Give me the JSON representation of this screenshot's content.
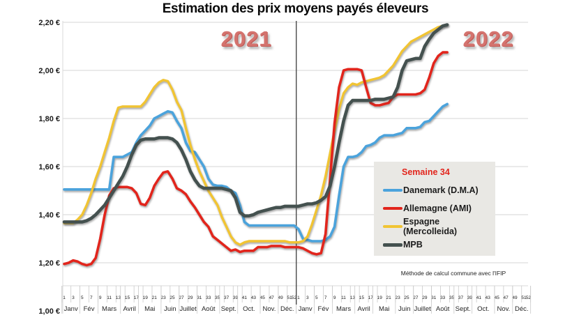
{
  "chart_data": {
    "type": "line",
    "title": "Estimation des prix moyens payés éleveurs",
    "year_labels": [
      "2021",
      "2022"
    ],
    "legend_title": "Semaine 34",
    "footnote": "Méthode de calcul commune avec l'IFIP",
    "layout": {
      "grid": "horizontal",
      "legend_position": "right-middle",
      "divider_between_years": true,
      "grid_color": "#d6d6d6",
      "divider_color": "#4a4a4a",
      "legend_bg": "#E9E8E4"
    },
    "y_axis": {
      "unit": "€",
      "min": 1.0,
      "max": 2.2,
      "step": 0.2,
      "ticks": [
        {
          "label": "2,20 €",
          "value": 2.2
        },
        {
          "label": "2,00 €",
          "value": 2.0
        },
        {
          "label": "1,80 €",
          "value": 1.8
        },
        {
          "label": "1,60 €",
          "value": 1.6
        },
        {
          "label": "1,40 €",
          "value": 1.4
        },
        {
          "label": "1,20 €",
          "value": 1.2
        },
        {
          "label": "1,00 €",
          "value": 1.0
        }
      ]
    },
    "x_axis": {
      "week_tick_labels": [
        "1",
        "3",
        "5",
        "7",
        "9",
        "11",
        "13",
        "15",
        "17",
        "19",
        "21",
        "23",
        "25",
        "27",
        "29",
        "31",
        "33",
        "35",
        "37",
        "39",
        "41",
        "43",
        "45",
        "47",
        "49",
        "51",
        "52"
      ],
      "months": [
        "Janv",
        "Fév",
        "Mars",
        "Avril",
        "Mai",
        "Juin",
        "Juillet",
        "Août",
        "Sept.",
        "Oct.",
        "Nov.",
        "Déc."
      ],
      "month_week_spans": [
        [
          1,
          4
        ],
        [
          5,
          8
        ],
        [
          9,
          13
        ],
        [
          14,
          17
        ],
        [
          18,
          22
        ],
        [
          23,
          26
        ],
        [
          27,
          30
        ],
        [
          31,
          35
        ],
        [
          36,
          39
        ],
        [
          40,
          44
        ],
        [
          45,
          48
        ],
        [
          49,
          52
        ]
      ]
    },
    "series": [
      {
        "name": "Danemark (D.M.A)",
        "color": "#4BA3DC",
        "line_width": 3.6,
        "values_2021": [
          1.505,
          1.505,
          1.505,
          1.505,
          1.505,
          1.505,
          1.505,
          1.505,
          1.505,
          1.505,
          1.505,
          1.64,
          1.64,
          1.64,
          1.65,
          1.66,
          1.7,
          1.73,
          1.75,
          1.77,
          1.8,
          1.81,
          1.82,
          1.83,
          1.825,
          1.79,
          1.76,
          1.7,
          1.665,
          1.66,
          1.63,
          1.6,
          1.55,
          1.525,
          1.52,
          1.52,
          1.515,
          1.5,
          1.49,
          1.44,
          1.37,
          1.355,
          1.355,
          1.355,
          1.355,
          1.355,
          1.355,
          1.355,
          1.355,
          1.355,
          1.355,
          1.355
        ],
        "values_2022": [
          1.34,
          1.3,
          1.295,
          1.29,
          1.29,
          1.29,
          1.295,
          1.31,
          1.35,
          1.48,
          1.6,
          1.64,
          1.64,
          1.645,
          1.66,
          1.685,
          1.69,
          1.7,
          1.72,
          1.73,
          1.73,
          1.73,
          1.735,
          1.74,
          1.76,
          1.76,
          1.76,
          1.765,
          1.785,
          1.79,
          1.81,
          1.83,
          1.85,
          1.86
        ]
      },
      {
        "name": "Allemagne (AMI)",
        "color": "#E2251C",
        "line_width": 3.6,
        "values_2021": [
          1.195,
          1.2,
          1.21,
          1.205,
          1.195,
          1.19,
          1.195,
          1.22,
          1.3,
          1.4,
          1.48,
          1.51,
          1.515,
          1.515,
          1.515,
          1.51,
          1.49,
          1.445,
          1.44,
          1.47,
          1.52,
          1.55,
          1.575,
          1.58,
          1.55,
          1.51,
          1.5,
          1.485,
          1.455,
          1.43,
          1.4,
          1.37,
          1.35,
          1.31,
          1.295,
          1.28,
          1.265,
          1.25,
          1.255,
          1.245,
          1.25,
          1.25,
          1.25,
          1.265,
          1.265,
          1.265,
          1.27,
          1.27,
          1.27,
          1.265,
          1.265,
          1.265
        ],
        "values_2022": [
          1.265,
          1.26,
          1.25,
          1.24,
          1.235,
          1.24,
          1.32,
          1.55,
          1.78,
          1.93,
          2.0,
          2.005,
          2.005,
          2.005,
          2.0,
          1.93,
          1.865,
          1.855,
          1.855,
          1.86,
          1.865,
          1.89,
          1.9,
          1.9,
          1.9,
          1.9,
          1.9,
          1.905,
          1.92,
          1.97,
          2.03,
          2.06,
          2.075,
          2.075
        ]
      },
      {
        "name": "Espagne (Mercolleida)",
        "color": "#F1C433",
        "line_width": 3.4,
        "values_2021": [
          1.365,
          1.365,
          1.365,
          1.38,
          1.4,
          1.44,
          1.49,
          1.55,
          1.6,
          1.66,
          1.72,
          1.79,
          1.845,
          1.85,
          1.85,
          1.85,
          1.85,
          1.85,
          1.87,
          1.9,
          1.93,
          1.95,
          1.96,
          1.955,
          1.92,
          1.87,
          1.835,
          1.76,
          1.69,
          1.63,
          1.58,
          1.54,
          1.5,
          1.47,
          1.44,
          1.39,
          1.35,
          1.31,
          1.285,
          1.275,
          1.285,
          1.29,
          1.29,
          1.29,
          1.29,
          1.29,
          1.29,
          1.29,
          1.29,
          1.29,
          1.285,
          1.285
        ],
        "values_2022": [
          1.285,
          1.29,
          1.31,
          1.36,
          1.42,
          1.48,
          1.56,
          1.655,
          1.75,
          1.84,
          1.905,
          1.93,
          1.945,
          1.94,
          1.95,
          1.955,
          1.96,
          1.965,
          1.97,
          1.98,
          2.0,
          2.02,
          2.05,
          2.08,
          2.1,
          2.12,
          2.13,
          2.14,
          2.15,
          2.16,
          2.17,
          2.18,
          2.185,
          2.19
        ]
      },
      {
        "name": "MPB",
        "color": "#44514F",
        "line_width": 4.6,
        "values_2021": [
          1.37,
          1.37,
          1.37,
          1.37,
          1.37,
          1.375,
          1.385,
          1.4,
          1.42,
          1.44,
          1.47,
          1.5,
          1.53,
          1.56,
          1.6,
          1.65,
          1.69,
          1.71,
          1.715,
          1.715,
          1.715,
          1.72,
          1.72,
          1.72,
          1.715,
          1.7,
          1.67,
          1.63,
          1.58,
          1.545,
          1.52,
          1.51,
          1.51,
          1.51,
          1.51,
          1.51,
          1.505,
          1.5,
          1.47,
          1.41,
          1.395,
          1.395,
          1.4,
          1.41,
          1.415,
          1.42,
          1.425,
          1.43,
          1.43,
          1.435,
          1.435,
          1.435
        ],
        "values_2022": [
          1.435,
          1.44,
          1.445,
          1.445,
          1.45,
          1.46,
          1.475,
          1.52,
          1.6,
          1.7,
          1.79,
          1.855,
          1.875,
          1.875,
          1.875,
          1.875,
          1.875,
          1.88,
          1.88,
          1.88,
          1.885,
          1.89,
          1.93,
          2.0,
          2.04,
          2.045,
          2.05,
          2.05,
          2.1,
          2.13,
          2.155,
          2.17,
          2.185,
          2.19
        ]
      }
    ]
  }
}
